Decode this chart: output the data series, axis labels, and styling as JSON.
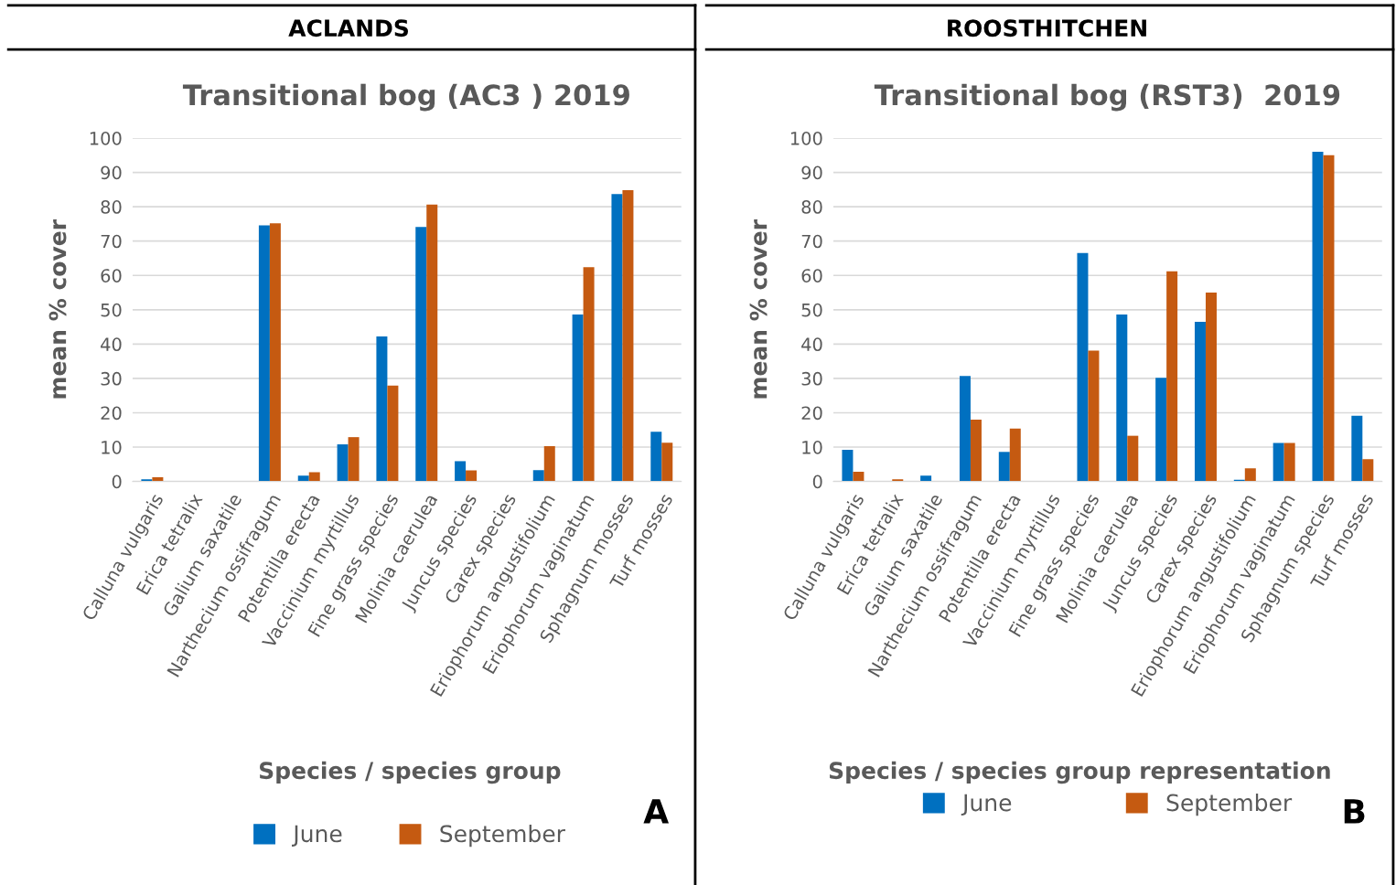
{
  "chart_data": [
    {
      "type": "bar",
      "title": "Transitional bog (AC3 ) 2019",
      "xlabel": "Species / species group",
      "ylabel": "mean % cover",
      "categories": [
        "Calluna vulgaris",
        "Erica tetralix",
        "Galium saxatile",
        "Narthecium ossifragum",
        "Potentilla erecta",
        "Vaccinium myrtillus",
        "Fine grass species",
        "Molinia caerulea",
        "Juncus species",
        "Carex species",
        "Eriophorum angustifolium",
        "Eriophorum vaginatum",
        "Sphagnum mosses",
        "Turf mosses"
      ],
      "series": [
        {
          "name": "June",
          "color": "#0070c0",
          "values": [
            0.6,
            0,
            0,
            74.6,
            1.7,
            10.8,
            42.2,
            74.1,
            5.9,
            0,
            3.3,
            48.6,
            83.7,
            14.5
          ]
        },
        {
          "name": "September",
          "color": "#c55a11",
          "values": [
            1.2,
            0,
            0,
            75.2,
            2.7,
            12.9,
            27.9,
            80.6,
            3.2,
            0,
            10.3,
            62.4,
            84.8,
            11.3
          ]
        }
      ],
      "ylim": [
        0,
        100
      ],
      "yticks": [
        0,
        10,
        20,
        30,
        40,
        50,
        60,
        70,
        80,
        90,
        100
      ],
      "grid": "y",
      "legend": "bottom",
      "annotations": [
        "ACLANDS",
        "A"
      ]
    },
    {
      "type": "bar",
      "title": "Transitional bog (RST3)  2019",
      "xlabel": "Species / species group representation",
      "ylabel": "mean % cover",
      "categories": [
        "Calluna vulgaris",
        "Erica tetralix",
        "Galium saxatile",
        "Narthecium ossifragum",
        "Potentilla erecta",
        "Vaccinium myrtillus",
        "Fine grass species",
        "Molinia caerulea",
        "Juncus species",
        "Carex species",
        "Eriophorum angustifolium",
        "Eriophorum vaginatum",
        "Sphagnum species",
        "Turf mosses"
      ],
      "series": [
        {
          "name": "June",
          "color": "#0070c0",
          "values": [
            9.2,
            0,
            1.7,
            30.7,
            8.6,
            0,
            66.5,
            48.6,
            30.2,
            46.5,
            0.5,
            11.2,
            96,
            19.1
          ]
        },
        {
          "name": "September",
          "color": "#c55a11",
          "values": [
            2.8,
            0.6,
            0,
            18.0,
            15.4,
            0,
            38.1,
            13.3,
            61.2,
            55,
            3.8,
            11.2,
            95,
            6.5
          ]
        }
      ],
      "ylim": [
        0,
        100
      ],
      "yticks": [
        0,
        10,
        20,
        30,
        40,
        50,
        60,
        70,
        80,
        90,
        100
      ],
      "grid": "y",
      "legend": "bottom",
      "annotations": [
        "ROOSTHITCHEN",
        "B"
      ]
    }
  ]
}
